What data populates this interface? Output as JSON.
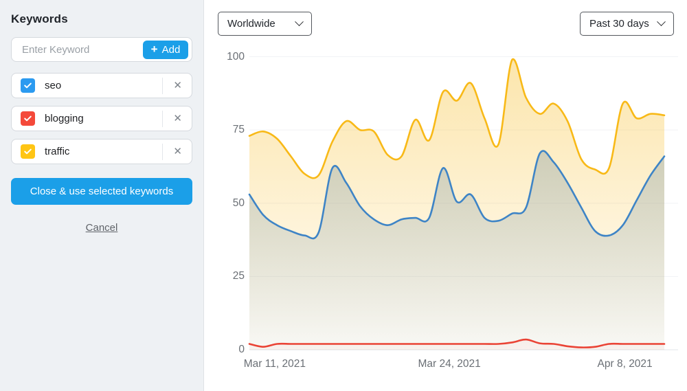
{
  "sidebar": {
    "title": "Keywords",
    "input": {
      "placeholder": "Enter Keyword",
      "add_label": "Add"
    },
    "keywords": [
      {
        "label": "seo",
        "checked": true,
        "color": "#2b9af0"
      },
      {
        "label": "blogging",
        "checked": true,
        "color": "#f4493a"
      },
      {
        "label": "traffic",
        "checked": true,
        "color": "#ffc514"
      }
    ],
    "close_button": "Close & use selected keywords",
    "cancel_link": "Cancel"
  },
  "toolbar": {
    "region_select": "Worldwide",
    "range_select": "Past 30 days"
  },
  "icons": {
    "plus_glyph": "+",
    "close_glyph": "✕"
  },
  "colors": {
    "accent_blue": "#1b9fe8",
    "grid_line": "#f1f2f5",
    "axis_line": "#e1e4e8",
    "tick_text": "#6a6f75"
  },
  "chart_data": {
    "type": "line",
    "title": "",
    "xlabel": "",
    "ylabel": "",
    "ylim": [
      0,
      100
    ],
    "grid": true,
    "legend": "none",
    "y_ticks": [
      0,
      25,
      50,
      75,
      100
    ],
    "x_ticks": [
      {
        "label": "Mar 11, 2021",
        "pos": 0.061
      },
      {
        "label": "Mar 24, 2021",
        "pos": 0.482
      },
      {
        "label": "Apr 8, 2021",
        "pos": 0.905
      }
    ],
    "series": [
      {
        "name": "traffic",
        "color": "#f8b917",
        "fill_top": "rgba(248,195,60,0.42)",
        "fill_bottom": "rgba(248,195,60,0.03)",
        "values": [
          73,
          74.5,
          72,
          66,
          60,
          59.5,
          71,
          78,
          75,
          74.5,
          66.5,
          66,
          78.5,
          71.5,
          88,
          85,
          91,
          79,
          70,
          99,
          86,
          80.5,
          84,
          78,
          65,
          61.5,
          62,
          84,
          79,
          80.5,
          80
        ]
      },
      {
        "name": "seo",
        "color": "#3e84c6",
        "fill_top": "rgba(98,132,154,0.42)",
        "fill_bottom": "rgba(98,132,154,0.04)",
        "values": [
          53,
          46,
          42.5,
          40.5,
          39,
          40,
          62,
          57,
          49,
          44.5,
          42.5,
          44.5,
          45,
          45,
          62,
          50.5,
          53,
          45,
          44,
          46.5,
          48.5,
          67,
          64,
          57,
          48.5,
          40.5,
          39,
          42.5,
          51,
          59.5,
          66
        ]
      },
      {
        "name": "blogging",
        "color": "#ea4335",
        "fill_top": "rgba(234,67,53,0.14)",
        "fill_bottom": "rgba(234,67,53,0.04)",
        "values": [
          2,
          1,
          2,
          2,
          2,
          2,
          2,
          2,
          2,
          2,
          2,
          2,
          2,
          2,
          2,
          2,
          2,
          2,
          2,
          2.5,
          3.5,
          2.2,
          2,
          1.2,
          0.8,
          1,
          2,
          2,
          2,
          2,
          2
        ]
      }
    ]
  }
}
